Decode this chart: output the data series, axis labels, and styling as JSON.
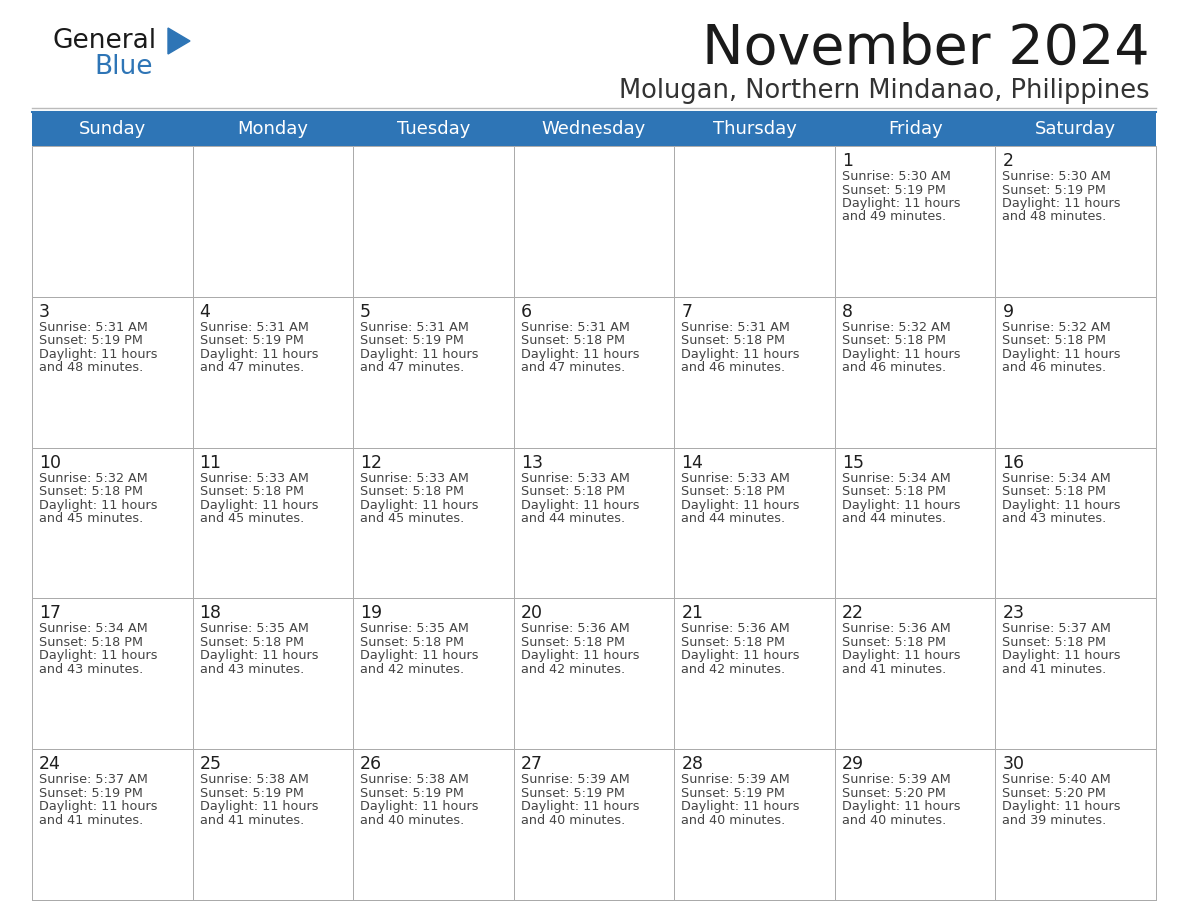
{
  "title": "November 2024",
  "subtitle": "Molugan, Northern Mindanao, Philippines",
  "header_bg": "#2E75B6",
  "header_text_color": "#FFFFFF",
  "day_names": [
    "Sunday",
    "Monday",
    "Tuesday",
    "Wednesday",
    "Thursday",
    "Friday",
    "Saturday"
  ],
  "cell_bg": "#FFFFFF",
  "cell_border": "#AAAAAA",
  "day_number_color": "#1F1F1F",
  "detail_color": "#444444",
  "title_color": "#1A1A1A",
  "subtitle_color": "#333333",
  "logo_general_color": "#1A1A1A",
  "logo_blue_color": "#2E75B6",
  "calendar_data": {
    "week1": {
      "days": [
        null,
        null,
        null,
        null,
        null,
        1,
        2
      ],
      "data": [
        null,
        null,
        null,
        null,
        null,
        {
          "sunrise": "5:30 AM",
          "sunset": "5:19 PM",
          "daylight": "11 hours and 49 minutes."
        },
        {
          "sunrise": "5:30 AM",
          "sunset": "5:19 PM",
          "daylight": "11 hours and 48 minutes."
        }
      ]
    },
    "week2": {
      "days": [
        3,
        4,
        5,
        6,
        7,
        8,
        9
      ],
      "data": [
        {
          "sunrise": "5:31 AM",
          "sunset": "5:19 PM",
          "daylight": "11 hours and 48 minutes."
        },
        {
          "sunrise": "5:31 AM",
          "sunset": "5:19 PM",
          "daylight": "11 hours and 47 minutes."
        },
        {
          "sunrise": "5:31 AM",
          "sunset": "5:19 PM",
          "daylight": "11 hours and 47 minutes."
        },
        {
          "sunrise": "5:31 AM",
          "sunset": "5:18 PM",
          "daylight": "11 hours and 47 minutes."
        },
        {
          "sunrise": "5:31 AM",
          "sunset": "5:18 PM",
          "daylight": "11 hours and 46 minutes."
        },
        {
          "sunrise": "5:32 AM",
          "sunset": "5:18 PM",
          "daylight": "11 hours and 46 minutes."
        },
        {
          "sunrise": "5:32 AM",
          "sunset": "5:18 PM",
          "daylight": "11 hours and 46 minutes."
        }
      ]
    },
    "week3": {
      "days": [
        10,
        11,
        12,
        13,
        14,
        15,
        16
      ],
      "data": [
        {
          "sunrise": "5:32 AM",
          "sunset": "5:18 PM",
          "daylight": "11 hours and 45 minutes."
        },
        {
          "sunrise": "5:33 AM",
          "sunset": "5:18 PM",
          "daylight": "11 hours and 45 minutes."
        },
        {
          "sunrise": "5:33 AM",
          "sunset": "5:18 PM",
          "daylight": "11 hours and 45 minutes."
        },
        {
          "sunrise": "5:33 AM",
          "sunset": "5:18 PM",
          "daylight": "11 hours and 44 minutes."
        },
        {
          "sunrise": "5:33 AM",
          "sunset": "5:18 PM",
          "daylight": "11 hours and 44 minutes."
        },
        {
          "sunrise": "5:34 AM",
          "sunset": "5:18 PM",
          "daylight": "11 hours and 44 minutes."
        },
        {
          "sunrise": "5:34 AM",
          "sunset": "5:18 PM",
          "daylight": "11 hours and 43 minutes."
        }
      ]
    },
    "week4": {
      "days": [
        17,
        18,
        19,
        20,
        21,
        22,
        23
      ],
      "data": [
        {
          "sunrise": "5:34 AM",
          "sunset": "5:18 PM",
          "daylight": "11 hours and 43 minutes."
        },
        {
          "sunrise": "5:35 AM",
          "sunset": "5:18 PM",
          "daylight": "11 hours and 43 minutes."
        },
        {
          "sunrise": "5:35 AM",
          "sunset": "5:18 PM",
          "daylight": "11 hours and 42 minutes."
        },
        {
          "sunrise": "5:36 AM",
          "sunset": "5:18 PM",
          "daylight": "11 hours and 42 minutes."
        },
        {
          "sunrise": "5:36 AM",
          "sunset": "5:18 PM",
          "daylight": "11 hours and 42 minutes."
        },
        {
          "sunrise": "5:36 AM",
          "sunset": "5:18 PM",
          "daylight": "11 hours and 41 minutes."
        },
        {
          "sunrise": "5:37 AM",
          "sunset": "5:18 PM",
          "daylight": "11 hours and 41 minutes."
        }
      ]
    },
    "week5": {
      "days": [
        24,
        25,
        26,
        27,
        28,
        29,
        30
      ],
      "data": [
        {
          "sunrise": "5:37 AM",
          "sunset": "5:19 PM",
          "daylight": "11 hours and 41 minutes."
        },
        {
          "sunrise": "5:38 AM",
          "sunset": "5:19 PM",
          "daylight": "11 hours and 41 minutes."
        },
        {
          "sunrise": "5:38 AM",
          "sunset": "5:19 PM",
          "daylight": "11 hours and 40 minutes."
        },
        {
          "sunrise": "5:39 AM",
          "sunset": "5:19 PM",
          "daylight": "11 hours and 40 minutes."
        },
        {
          "sunrise": "5:39 AM",
          "sunset": "5:19 PM",
          "daylight": "11 hours and 40 minutes."
        },
        {
          "sunrise": "5:39 AM",
          "sunset": "5:20 PM",
          "daylight": "11 hours and 40 minutes."
        },
        {
          "sunrise": "5:40 AM",
          "sunset": "5:20 PM",
          "daylight": "11 hours and 39 minutes."
        }
      ]
    }
  },
  "fig_width": 11.88,
  "fig_height": 9.18,
  "dpi": 100
}
